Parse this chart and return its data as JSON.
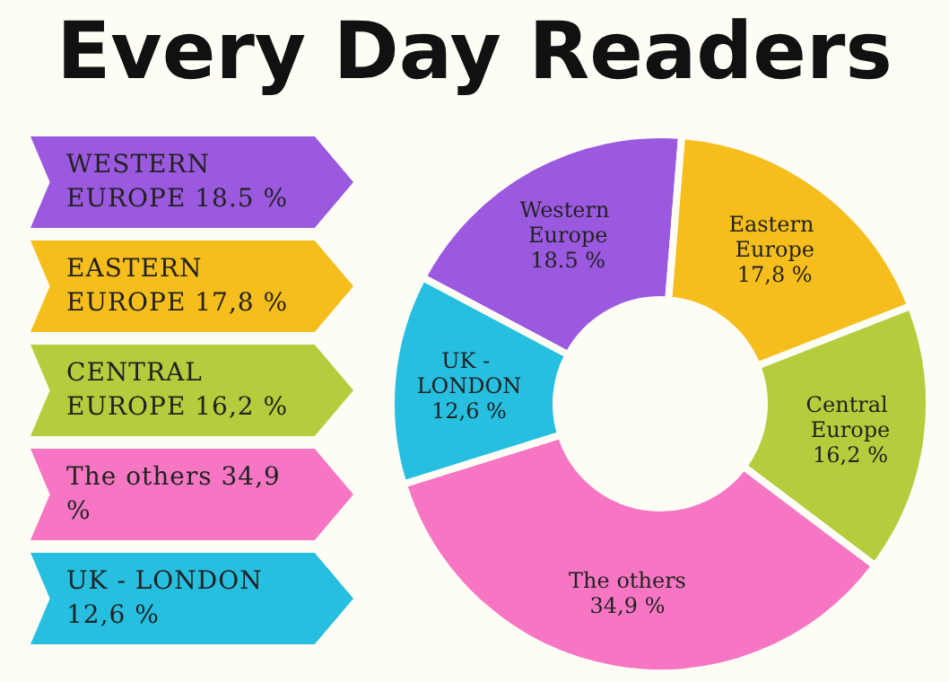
{
  "chart_data": {
    "type": "donut",
    "title": "Every Day Readers",
    "categories": [
      "Western Europe",
      "Eastern Europe",
      "Central Europe",
      "The others",
      "UK - LONDON"
    ],
    "values": [
      18.5,
      17.8,
      16.2,
      34.9,
      12.6
    ],
    "colors": [
      "#9b59e0",
      "#f6be1c",
      "#b3cd3c",
      "#f776c3",
      "#27bfe0"
    ],
    "value_labels": [
      "18.5 %",
      "17,8 %",
      "16,2 %",
      "34,9 %",
      "12,6 %"
    ],
    "annotations": [
      "WESTERN EUROPE 18.5 %",
      "EASTERN EUROPE 17,8 %",
      "CENTRAL EUROPE 16,2 %",
      "The others 34,9 %",
      "UK - LONDON 12,6 %"
    ],
    "legend": false
  }
}
